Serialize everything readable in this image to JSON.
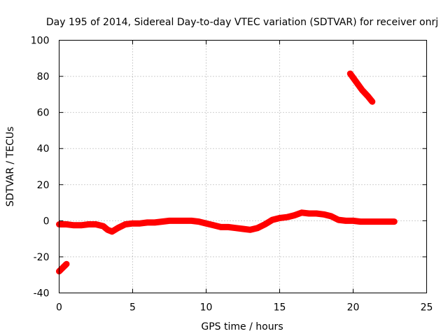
{
  "chart_data": {
    "type": "line",
    "title": "Day 195 of 2014, Sidereal Day-to-day VTEC variation (SDTVAR) for receiver onrj",
    "xlabel": "GPS time / hours",
    "ylabel": "SDTVAR / TECUs",
    "xlim": [
      0,
      25
    ],
    "ylim": [
      -40,
      100
    ],
    "xticks": [
      0,
      5,
      10,
      15,
      20,
      25
    ],
    "yticks": [
      -40,
      -20,
      0,
      20,
      40,
      60,
      80,
      100
    ],
    "grid": true,
    "legend": "none",
    "color": "#ff0000",
    "series": [
      {
        "name": "segment-1",
        "x": [
          0.0,
          0.5
        ],
        "y": [
          -28,
          -24
        ]
      },
      {
        "name": "segment-2",
        "x": [
          0.0,
          0.5,
          1.0,
          1.5,
          2.0,
          2.5,
          3.0,
          3.3,
          3.6,
          4.0,
          4.5,
          5.0,
          5.5,
          6.0,
          6.5,
          7.0,
          7.5,
          8.0,
          8.5,
          9.0,
          9.5,
          10.0,
          10.5,
          11.0,
          11.5,
          12.0,
          12.5,
          13.0,
          13.5,
          14.0,
          14.5,
          15.0,
          15.5,
          16.0,
          16.5,
          17.0,
          17.5,
          18.0,
          18.5,
          19.0,
          19.5,
          20.0,
          20.5,
          21.0,
          21.5,
          22.0,
          22.5,
          22.8
        ],
        "y": [
          -2,
          -2,
          -2.5,
          -2.5,
          -2,
          -2,
          -3,
          -5,
          -6,
          -4,
          -2,
          -1.5,
          -1.5,
          -1,
          -1,
          -0.5,
          0,
          0,
          0,
          0,
          -0.5,
          -1.5,
          -2.5,
          -3.5,
          -3.5,
          -4,
          -4.5,
          -5,
          -4,
          -2,
          0.5,
          1.5,
          2,
          3,
          4.5,
          4,
          4,
          3.5,
          2.5,
          0.5,
          0,
          0,
          -0.5,
          -0.5,
          -0.5,
          -0.5,
          -0.5,
          -0.5
        ]
      },
      {
        "name": "segment-3",
        "x": [
          19.8,
          20.2,
          20.6,
          21.0,
          21.3
        ],
        "y": [
          81.5,
          77,
          72.5,
          69,
          66
        ]
      }
    ]
  }
}
